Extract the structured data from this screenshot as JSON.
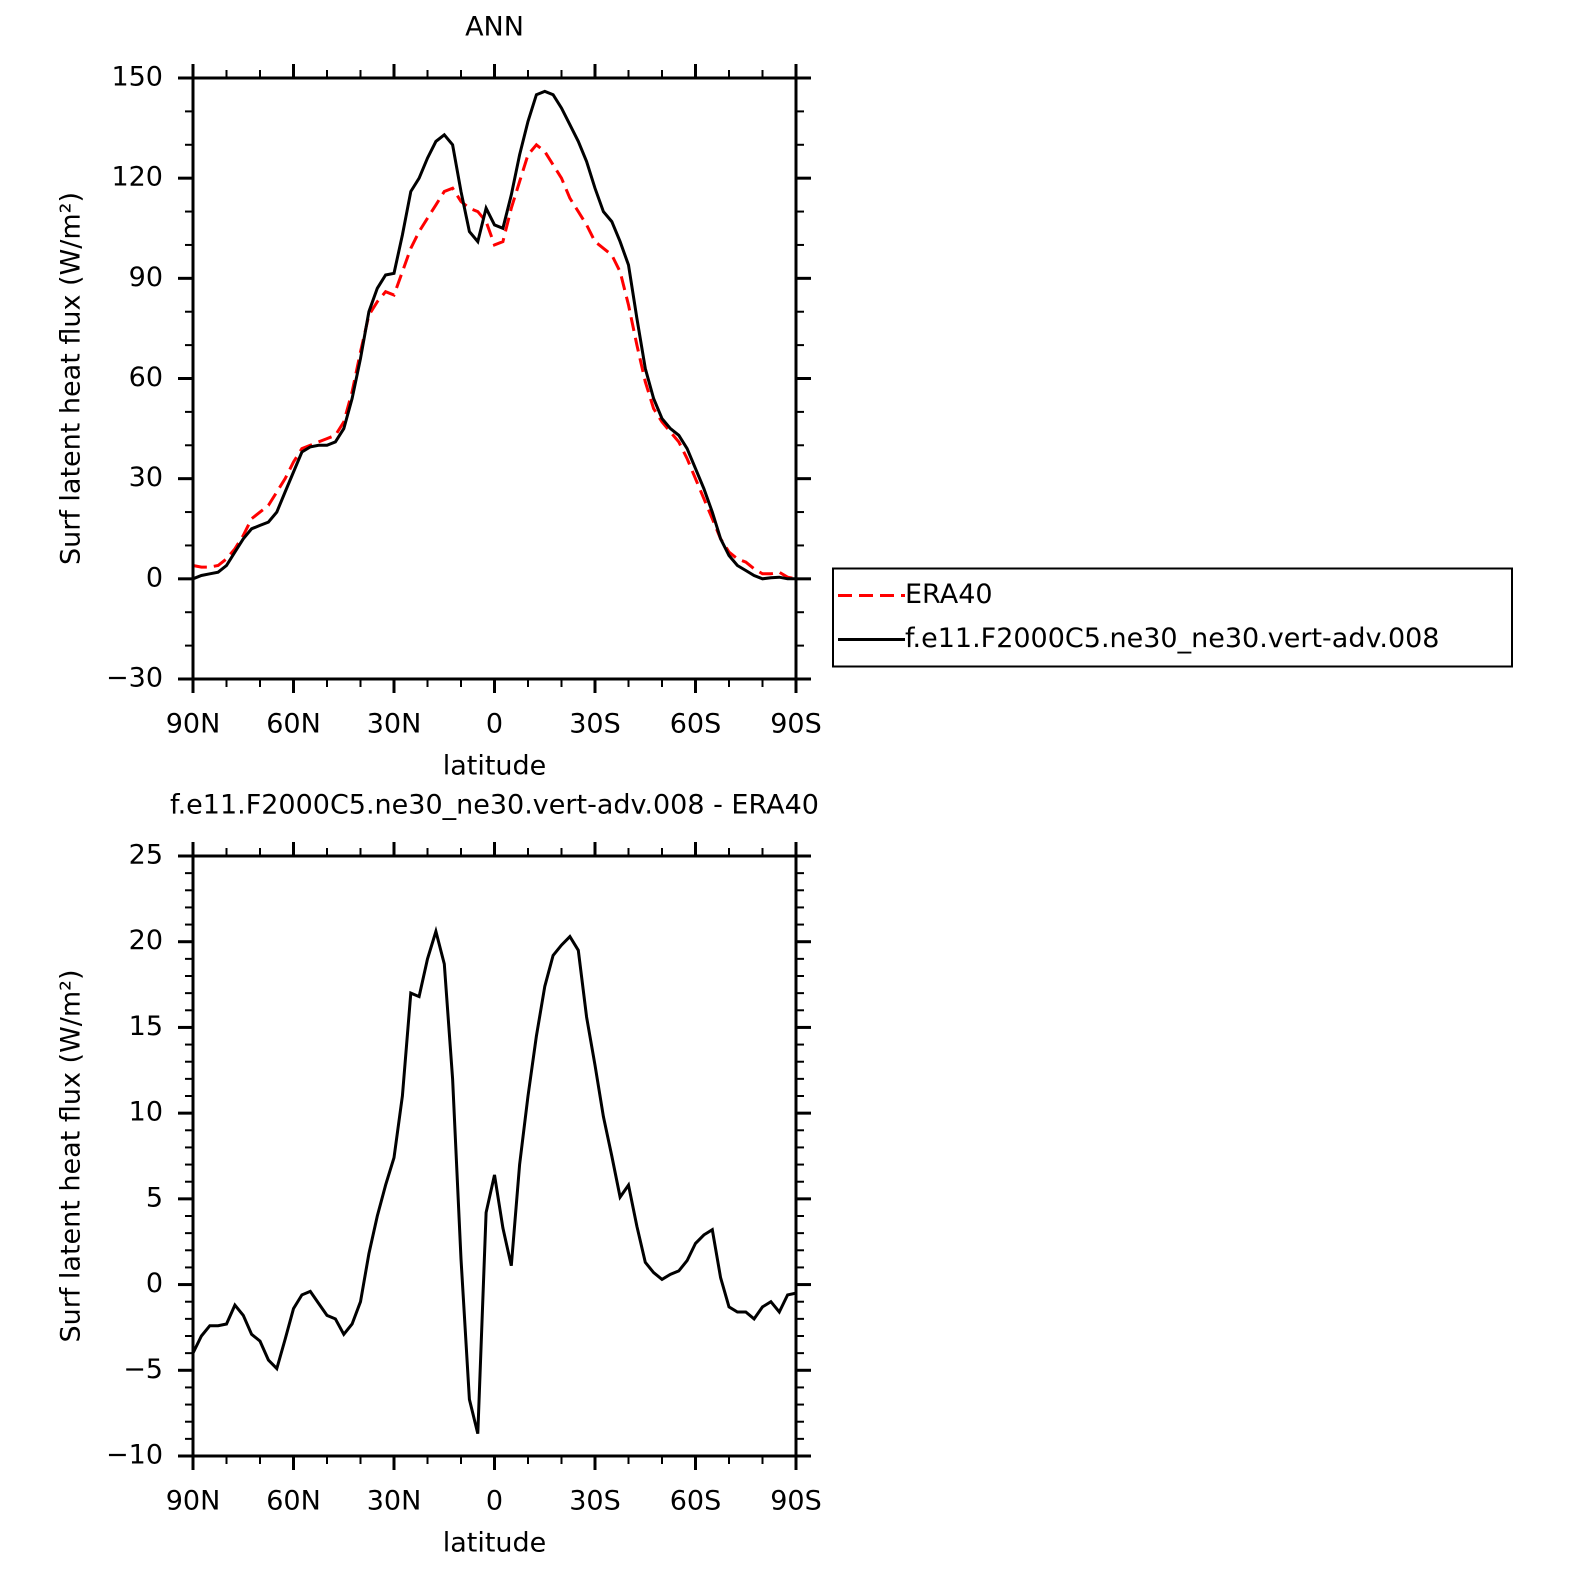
{
  "chart_data": [
    {
      "type": "line",
      "title": "ANN",
      "xlabel": "latitude",
      "ylabel": "Surf latent heat flux (W/m²)",
      "x": [
        90,
        87.5,
        85,
        82.5,
        80,
        77.5,
        75,
        72.5,
        70,
        67.5,
        65,
        62.5,
        60,
        57.5,
        55,
        52.5,
        50,
        47.5,
        45,
        42.5,
        40,
        37.5,
        35,
        32.5,
        30,
        27.5,
        25,
        22.5,
        20,
        17.5,
        15,
        12.5,
        10,
        7.5,
        5,
        2.5,
        0,
        -2.5,
        -5,
        -7.5,
        -10,
        -12.5,
        -15,
        -17.5,
        -20,
        -22.5,
        -25,
        -27.5,
        -30,
        -32.5,
        -35,
        -37.5,
        -40,
        -42.5,
        -45,
        -47.5,
        -50,
        -52.5,
        -55,
        -57.5,
        -60,
        -62.5,
        -65,
        -67.5,
        -70,
        -72.5,
        -75,
        -77.5,
        -80,
        -82.5,
        -85,
        -87.5,
        -90
      ],
      "series": [
        {
          "name": "ERA40",
          "color": "#ff0000",
          "linestyle": "dashed",
          "values": [
            4,
            3.5,
            3.5,
            4,
            6,
            9,
            13,
            18,
            20,
            22,
            26,
            30,
            35,
            39,
            40,
            41,
            42,
            43,
            47,
            56,
            68,
            79,
            83,
            86,
            85,
            92,
            99,
            104,
            108,
            112,
            116,
            117,
            113,
            111,
            110,
            107,
            100,
            101,
            111,
            119,
            127,
            130,
            128,
            124,
            120,
            114,
            110,
            106,
            101,
            99,
            97,
            92,
            82,
            70,
            59,
            51,
            47,
            44,
            41,
            36,
            30,
            24,
            18,
            12,
            8,
            6,
            5,
            3,
            1.5,
            1.5,
            2,
            0.5,
            0
          ]
        },
        {
          "name": "f.e11.F2000C5.ne30_ne30.vert-adv.008",
          "color": "#000000",
          "linestyle": "solid",
          "values": [
            0,
            1,
            1.5,
            2,
            4,
            8,
            12,
            15,
            16,
            17,
            20,
            26,
            32,
            38,
            39.5,
            40,
            40,
            41,
            45,
            54,
            66,
            80,
            87,
            91,
            91.5,
            103,
            116,
            120,
            126,
            131,
            133,
            130,
            116,
            104,
            101,
            111,
            106,
            105,
            115,
            127,
            137,
            145,
            146,
            145,
            141,
            136,
            131,
            125,
            117,
            110,
            107,
            101,
            94,
            78,
            63,
            54,
            48,
            45,
            43,
            39,
            33,
            27,
            20,
            12,
            7,
            4,
            2.5,
            1,
            0,
            0.3,
            0.5,
            0,
            0
          ]
        }
      ],
      "xlim": [
        90,
        -90
      ],
      "xticks": [
        {
          "value": 90,
          "label": "90N"
        },
        {
          "value": 60,
          "label": "60N"
        },
        {
          "value": 30,
          "label": "30N"
        },
        0,
        {
          "value": -30,
          "label": "30S"
        },
        {
          "value": -60,
          "label": "60S"
        },
        {
          "value": -90,
          "label": "90S"
        }
      ],
      "xminor": [
        80,
        70,
        50,
        40,
        20,
        10,
        -10,
        -20,
        -40,
        -50,
        -70,
        -80
      ],
      "ylim": [
        -30,
        150
      ],
      "yticks": [
        {
          "value": -30,
          "label": "−30"
        },
        0,
        30,
        60,
        90,
        120,
        150
      ],
      "yminor": [
        -20,
        -10,
        10,
        20,
        40,
        50,
        70,
        80,
        100,
        110,
        130,
        140
      ],
      "legend": "right"
    },
    {
      "type": "line",
      "title": "f.e11.F2000C5.ne30_ne30.vert-adv.008 - ERA40",
      "xlabel": "latitude",
      "ylabel": "Surf latent heat flux (W/m²)",
      "x": [
        90,
        87.5,
        85,
        82.5,
        80,
        77.5,
        75,
        72.5,
        70,
        67.5,
        65,
        62.5,
        60,
        57.5,
        55,
        52.5,
        50,
        47.5,
        45,
        42.5,
        40,
        37.5,
        35,
        32.5,
        30,
        27.5,
        25,
        22.5,
        20,
        17.5,
        15,
        12.5,
        10,
        7.5,
        5,
        2.5,
        0,
        -2.5,
        -5,
        -7.5,
        -10,
        -12.5,
        -15,
        -17.5,
        -20,
        -22.5,
        -25,
        -27.5,
        -30,
        -32.5,
        -35,
        -37.5,
        -40,
        -42.5,
        -45,
        -47.5,
        -50,
        -52.5,
        -55,
        -57.5,
        -60,
        -62.5,
        -65,
        -67.5,
        -70,
        -72.5,
        -75,
        -77.5,
        -80,
        -82.5,
        -85,
        -87.5,
        -90
      ],
      "series": [
        {
          "color": "#000000",
          "linestyle": "solid",
          "values": [
            -4,
            -3,
            -2.4,
            -2.4,
            -2.3,
            -1.2,
            -1.8,
            -2.9,
            -3.3,
            -4.4,
            -4.9,
            -3.2,
            -1.4,
            -0.6,
            -0.4,
            -1.1,
            -1.8,
            -2,
            -2.9,
            -2.3,
            -1,
            1.8,
            4,
            5.8,
            7.4,
            11,
            17,
            16.8,
            19,
            20.6,
            18.7,
            12,
            1.5,
            -6.7,
            -8.7,
            4.2,
            6.4,
            3.3,
            1.1,
            7,
            11,
            14.5,
            17.4,
            19.2,
            19.8,
            20.3,
            19.5,
            15.6,
            12.8,
            9.8,
            7.5,
            5.1,
            5.8,
            3.4,
            1.3,
            0.7,
            0.3,
            0.6,
            0.8,
            1.4,
            2.4,
            2.9,
            3.2,
            0.4,
            -1.3,
            -1.6,
            -1.6,
            -2,
            -1.3,
            -1,
            -1.6,
            -0.6,
            -0.5
          ]
        }
      ],
      "xlim": [
        90,
        -90
      ],
      "xticks": [
        {
          "value": 90,
          "label": "90N"
        },
        {
          "value": 60,
          "label": "60N"
        },
        {
          "value": 30,
          "label": "30N"
        },
        0,
        {
          "value": -30,
          "label": "30S"
        },
        {
          "value": -60,
          "label": "60S"
        },
        {
          "value": -90,
          "label": "90S"
        }
      ],
      "xminor": [
        80,
        70,
        50,
        40,
        20,
        10,
        -10,
        -20,
        -40,
        -50,
        -70,
        -80
      ],
      "ylim": [
        -10,
        25
      ],
      "yticks": [
        {
          "value": -10,
          "label": "−10"
        },
        {
          "value": -5,
          "label": "−5"
        },
        0,
        5,
        10,
        15,
        20,
        25
      ],
      "yminor": [
        -9,
        -8,
        -7,
        -6,
        -4,
        -3,
        -2,
        -1,
        1,
        2,
        3,
        4,
        6,
        7,
        8,
        9,
        11,
        12,
        13,
        14,
        16,
        17,
        18,
        19,
        21,
        22,
        23,
        24
      ]
    }
  ]
}
